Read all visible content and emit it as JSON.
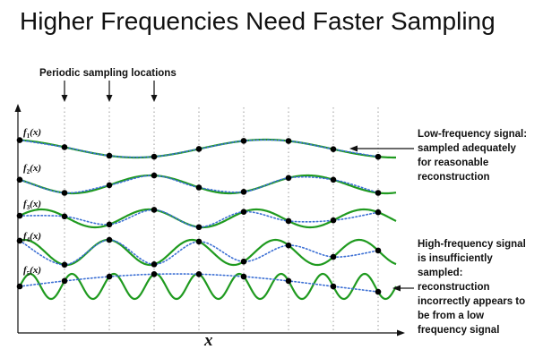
{
  "title": "Higher Frequencies Need Faster Sampling",
  "sampling_label": "Periodic sampling locations",
  "x_axis_label": "x",
  "signals": [
    {
      "label": "f",
      "subscript": "1",
      "suffix": "(x)",
      "cycles": 1.45,
      "amplitude": 10,
      "phase": 1.9
    },
    {
      "label": "f",
      "subscript": "2",
      "suffix": "(x)",
      "cycles": 2.4,
      "amplitude": 10,
      "phase": 2.6
    },
    {
      "label": "f",
      "subscript": "3",
      "suffix": "(x)",
      "cycles": 3.5,
      "amplitude": 10,
      "phase": 0.3
    },
    {
      "label": "f",
      "subscript": "4",
      "suffix": "(x)",
      "cycles": 4.5,
      "amplitude": 14,
      "phase": 1.2
    },
    {
      "label": "f",
      "subscript": "5",
      "suffix": "(x)",
      "cycles": 9.0,
      "amplitude": 14,
      "phase": 0.0
    }
  ],
  "sample_count": 9,
  "low_freq_note": [
    "Low-frequency signal:",
    "sampled adequately",
    "for reasonable",
    "reconstruction"
  ],
  "high_freq_note": [
    "High-frequency signal",
    "is insufficiently",
    "sampled:",
    "reconstruction",
    "incorrectly appears to",
    "be from a low",
    "frequency signal"
  ],
  "colors": {
    "signal": "#1f9a1f",
    "reconstruction": "#3b6fd4",
    "sample_dot": "#000000",
    "grid": "#999999",
    "text": "#111111"
  }
}
